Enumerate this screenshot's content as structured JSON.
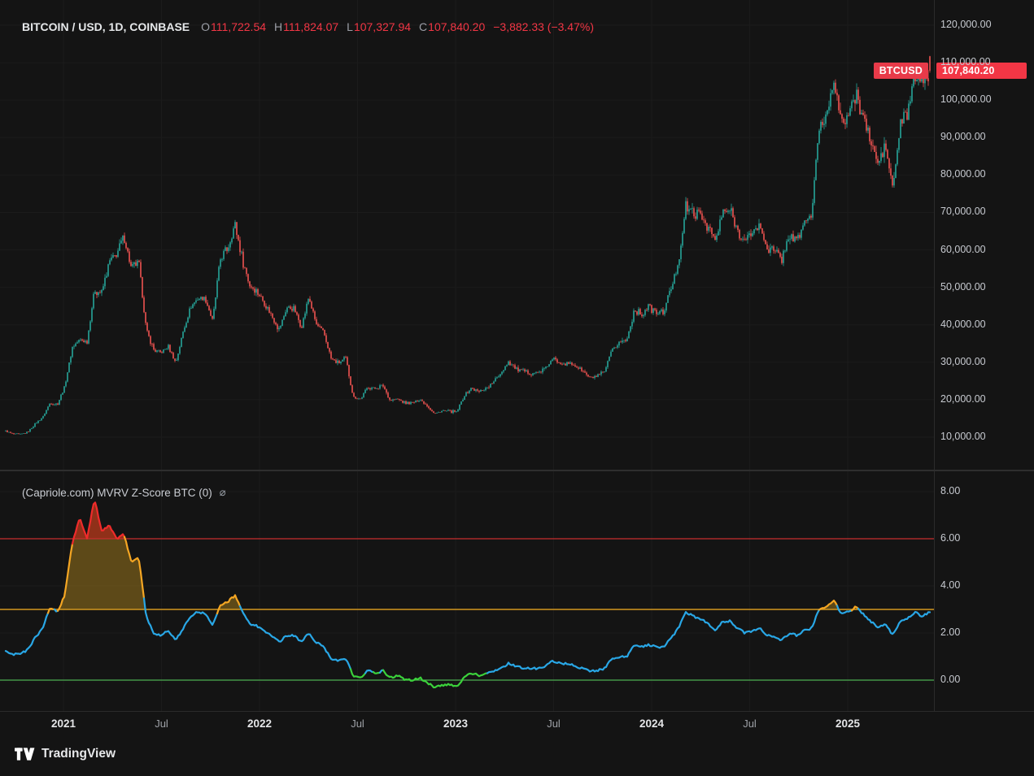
{
  "header": {
    "symbol_title": "BITCOIN / USD, 1D, COINBASE",
    "ohlc": {
      "o_label": "O",
      "o": "111,722.54",
      "h_label": "H",
      "h": "111,824.07",
      "l_label": "L",
      "l": "107,327.94",
      "c_label": "C",
      "c": "107,840.20"
    },
    "change": "−3,882.33 (−3.47%)"
  },
  "price_label": {
    "symbol_badge": "BTCUSD",
    "price_badge": "107,840.20",
    "price_value": 107840.2
  },
  "indicator_header": {
    "title": "(Capriole.com) MVRV Z-Score BTC (0)",
    "status_icon": "⌀"
  },
  "logo": {
    "text": "TradingView"
  },
  "colors": {
    "background": "#141414",
    "candle_up": "#26a69a",
    "candle_down": "#ef5350",
    "accent_red": "#f23645",
    "badge_symbol_bg": "#e83a49",
    "badge_price_bg": "#f23645",
    "grid": "#1b1b1b",
    "z_blue": "#29a7e6",
    "z_orange": "#f5a623",
    "z_red": "#ee2b2b",
    "z_green": "#3bd23b",
    "line_red": "#c62f2f",
    "line_orange": "#d4981f",
    "line_green": "#4caf50",
    "fill_above_3": "rgba(196,148,30,0.42)",
    "fill_above_6": "rgba(185,28,28,0.55)"
  },
  "axes": {
    "price_ticks": [
      {
        "label": "120,000.00",
        "value": 120000
      },
      {
        "label": "110,000.00",
        "value": 110000
      },
      {
        "label": "100,000.00",
        "value": 100000
      },
      {
        "label": "90,000.00",
        "value": 90000
      },
      {
        "label": "80,000.00",
        "value": 80000
      },
      {
        "label": "70,000.00",
        "value": 70000
      },
      {
        "label": "60,000.00",
        "value": 60000
      },
      {
        "label": "50,000.00",
        "value": 50000
      },
      {
        "label": "40,000.00",
        "value": 40000
      },
      {
        "label": "30,000.00",
        "value": 30000
      },
      {
        "label": "20,000.00",
        "value": 20000
      },
      {
        "label": "10,000.00",
        "value": 10000
      }
    ],
    "z_ticks": [
      {
        "label": "8.00",
        "value": 8
      },
      {
        "label": "6.00",
        "value": 6
      },
      {
        "label": "4.00",
        "value": 4
      },
      {
        "label": "2.00",
        "value": 2
      },
      {
        "label": "0.00",
        "value": 0
      }
    ],
    "time_ticks": [
      {
        "label": "2021",
        "t": 2021,
        "major": true
      },
      {
        "label": "Jul",
        "t": 2021.5,
        "major": false
      },
      {
        "label": "2022",
        "t": 2022,
        "major": true
      },
      {
        "label": "Jul",
        "t": 2022.5,
        "major": false
      },
      {
        "label": "2023",
        "t": 2023,
        "major": true
      },
      {
        "label": "Jul",
        "t": 2023.5,
        "major": false
      },
      {
        "label": "2024",
        "t": 2024,
        "major": true
      },
      {
        "label": "Jul",
        "t": 2024.5,
        "major": false
      },
      {
        "label": "2025",
        "t": 2025,
        "major": true
      }
    ]
  },
  "chart_data": [
    {
      "type": "candlestick",
      "pane": "price",
      "title": "BITCOIN / USD, 1D, COINBASE",
      "ylabel": "BTC/USD price",
      "ylim": [
        10000,
        120000
      ],
      "x_start_year": 2020.676,
      "x_end_year": 2025.42,
      "sample_interval_days": 14,
      "ohlc_current": {
        "open": 111722.54,
        "high": 111824.07,
        "low": 107327.94,
        "close": 107840.2,
        "change": -3882.33,
        "change_pct": -3.47
      },
      "closes": [
        11600,
        10800,
        10750,
        11400,
        13650,
        15300,
        19150,
        18800,
        23700,
        34000,
        36000,
        35500,
        49200,
        48500,
        56900,
        58900,
        63500,
        55000,
        56700,
        38800,
        33400,
        32500,
        34200,
        29800,
        38200,
        44700,
        47100,
        47100,
        41000,
        57400,
        60300,
        66900,
        57600,
        50600,
        48900,
        45800,
        42400,
        38700,
        44600,
        44400,
        39300,
        47500,
        40100,
        38100,
        31000,
        29700,
        31100,
        20700,
        20200,
        23400,
        23000,
        23900,
        19800,
        20200,
        19100,
        19100,
        20100,
        18500,
        16200,
        17000,
        16900,
        16700,
        21100,
        23100,
        22100,
        23100,
        24700,
        27300,
        30200,
        28300,
        27600,
        27200,
        27200,
        28300,
        30800,
        29900,
        29700,
        29200,
        27700,
        25800,
        26200,
        27400,
        33100,
        35400,
        35800,
        44000,
        42700,
        45000,
        43100,
        43500,
        49700,
        57000,
        71500,
        69900,
        69100,
        66400,
        62300,
        70100,
        70500,
        65200,
        62000,
        65100,
        66200,
        60600,
        59500,
        57600,
        64300,
        62300,
        67400,
        69400,
        92300,
        96000,
        106100,
        93400,
        96500,
        101300,
        95800,
        88600,
        82900,
        87500,
        76300,
        93400,
        96800,
        106800,
        105400,
        107840
      ]
    },
    {
      "type": "line",
      "pane": "zscore",
      "title": "(Capriole.com) MVRV Z-Score BTC (0)",
      "ylim": [
        0,
        8
      ],
      "x_start_year": 2020.676,
      "x_end_year": 2025.42,
      "thresholds": [
        {
          "value": 6,
          "color": "#c62f2f"
        },
        {
          "value": 3,
          "color": "#d4981f"
        },
        {
          "value": 0,
          "color": "#4caf50"
        }
      ],
      "zone_colors": {
        "extreme": "#ee2b2b",
        "high": "#f5a623",
        "low": "#3bd23b",
        "normal": "#29a7e6"
      },
      "green_below": 0.32,
      "values": [
        1.2,
        1.1,
        1.1,
        1.3,
        1.8,
        2.2,
        3.1,
        2.9,
        3.6,
        5.8,
        6.9,
        6.0,
        7.7,
        6.3,
        6.6,
        6.0,
        6.2,
        5.0,
        5.2,
        2.7,
        2.0,
        1.9,
        2.1,
        1.7,
        2.2,
        2.7,
        2.9,
        2.8,
        2.3,
        3.2,
        3.3,
        3.6,
        2.9,
        2.4,
        2.3,
        2.1,
        1.9,
        1.6,
        1.9,
        1.9,
        1.6,
        2.0,
        1.6,
        1.4,
        0.9,
        0.8,
        0.9,
        0.2,
        0.1,
        0.4,
        0.3,
        0.4,
        0.1,
        0.2,
        0.0,
        0.0,
        0.1,
        -0.1,
        -0.3,
        -0.2,
        -0.2,
        -0.25,
        0.1,
        0.3,
        0.2,
        0.3,
        0.4,
        0.5,
        0.7,
        0.6,
        0.5,
        0.5,
        0.5,
        0.6,
        0.8,
        0.7,
        0.7,
        0.6,
        0.5,
        0.4,
        0.4,
        0.5,
        0.9,
        1.0,
        1.0,
        1.5,
        1.4,
        1.5,
        1.4,
        1.4,
        1.8,
        2.2,
        2.9,
        2.7,
        2.6,
        2.4,
        2.1,
        2.5,
        2.5,
        2.2,
        2.0,
        2.1,
        2.2,
        1.9,
        1.8,
        1.7,
        2.0,
        1.9,
        2.1,
        2.2,
        3.0,
        3.1,
        3.4,
        2.8,
        2.9,
        3.1,
        2.8,
        2.5,
        2.2,
        2.4,
        1.9,
        2.5,
        2.6,
        2.9,
        2.7,
        2.9
      ]
    }
  ]
}
